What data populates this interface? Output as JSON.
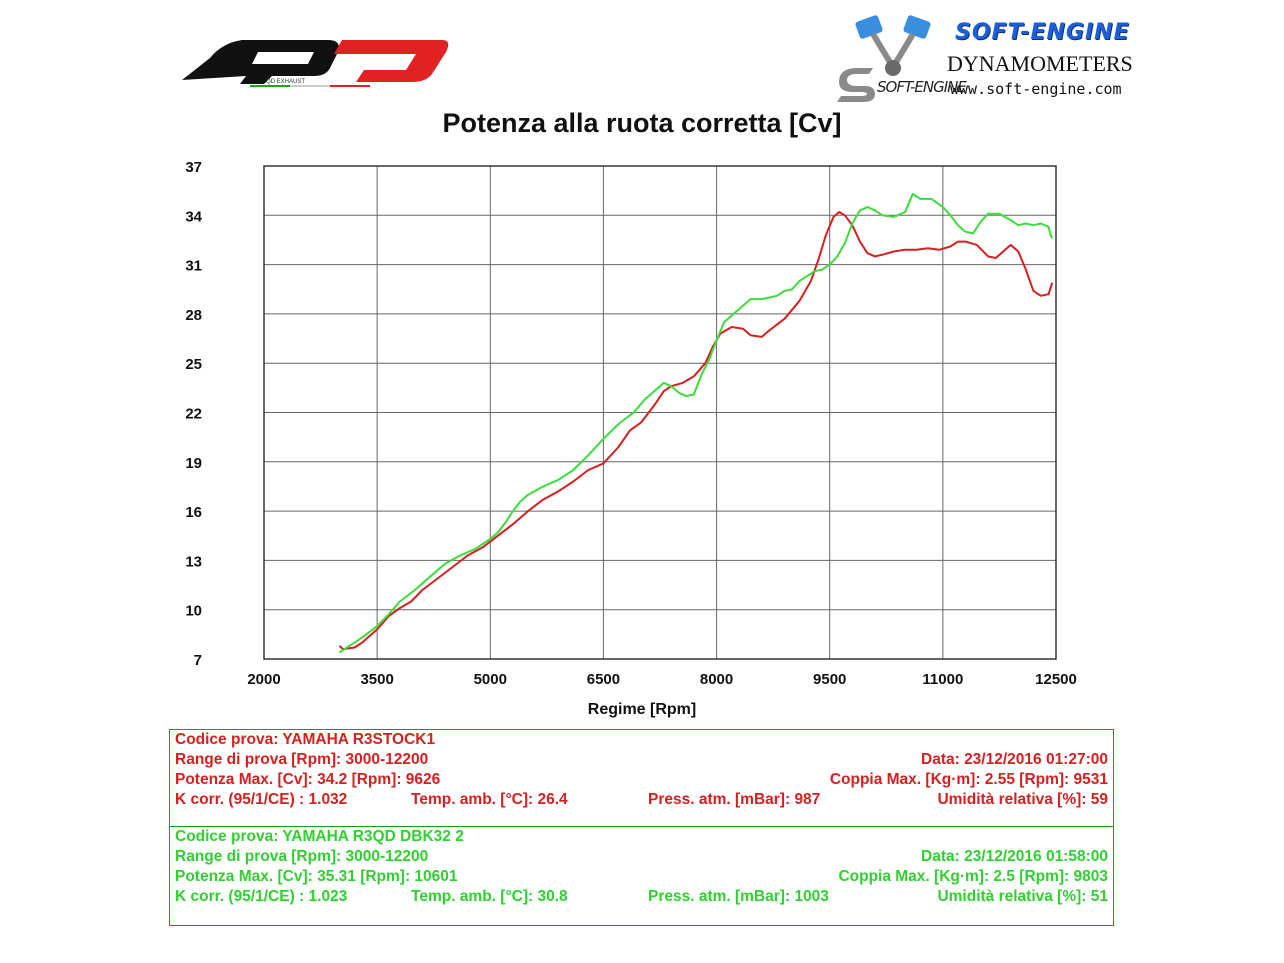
{
  "branding": {
    "left_logo_caption": "QD EXHAUST",
    "right_brand": "SOFT-ENGINE",
    "right_subtitle": "DYNAMOMETERS",
    "right_url": "www.soft-engine.com",
    "right_logo_text": "SOFT-ENGINE"
  },
  "chart_data": {
    "type": "line",
    "title": "Potenza alla ruota corretta [Cv]",
    "xlabel": "Regime [Rpm]",
    "ylabel": "",
    "xlim": [
      2000,
      12500
    ],
    "ylim": [
      7,
      37
    ],
    "xticks": [
      2000,
      3500,
      5000,
      6500,
      8000,
      9500,
      11000,
      12500
    ],
    "yticks": [
      7,
      10,
      13,
      16,
      19,
      22,
      25,
      28,
      31,
      34,
      37
    ],
    "grid": true,
    "series": [
      {
        "color": "#d61f1f",
        "points": [
          [
            3000,
            7.8
          ],
          [
            3050,
            7.6
          ],
          [
            3200,
            7.7
          ],
          [
            3300,
            8.0
          ],
          [
            3500,
            8.8
          ],
          [
            3650,
            9.6
          ],
          [
            3800,
            10.1
          ],
          [
            3950,
            10.5
          ],
          [
            4100,
            11.2
          ],
          [
            4300,
            11.9
          ],
          [
            4500,
            12.6
          ],
          [
            4700,
            13.3
          ],
          [
            4900,
            13.8
          ],
          [
            5100,
            14.5
          ],
          [
            5300,
            15.2
          ],
          [
            5500,
            16.0
          ],
          [
            5700,
            16.7
          ],
          [
            5900,
            17.2
          ],
          [
            6100,
            17.8
          ],
          [
            6300,
            18.5
          ],
          [
            6500,
            18.9
          ],
          [
            6700,
            19.9
          ],
          [
            6850,
            20.9
          ],
          [
            7000,
            21.4
          ],
          [
            7100,
            22.0
          ],
          [
            7200,
            22.6
          ],
          [
            7300,
            23.3
          ],
          [
            7400,
            23.6
          ],
          [
            7550,
            23.8
          ],
          [
            7700,
            24.2
          ],
          [
            7850,
            25.0
          ],
          [
            7950,
            26.0
          ],
          [
            8050,
            26.8
          ],
          [
            8200,
            27.2
          ],
          [
            8350,
            27.1
          ],
          [
            8450,
            26.7
          ],
          [
            8600,
            26.6
          ],
          [
            8700,
            27.0
          ],
          [
            8900,
            27.7
          ],
          [
            9100,
            28.8
          ],
          [
            9250,
            30.0
          ],
          [
            9350,
            31.3
          ],
          [
            9450,
            32.8
          ],
          [
            9550,
            33.9
          ],
          [
            9626,
            34.2
          ],
          [
            9700,
            34.0
          ],
          [
            9800,
            33.4
          ],
          [
            9900,
            32.4
          ],
          [
            10000,
            31.7
          ],
          [
            10100,
            31.5
          ],
          [
            10200,
            31.6
          ],
          [
            10350,
            31.8
          ],
          [
            10500,
            31.9
          ],
          [
            10650,
            31.9
          ],
          [
            10800,
            32.0
          ],
          [
            10950,
            31.9
          ],
          [
            11100,
            32.1
          ],
          [
            11200,
            32.4
          ],
          [
            11300,
            32.4
          ],
          [
            11450,
            32.2
          ],
          [
            11600,
            31.5
          ],
          [
            11700,
            31.4
          ],
          [
            11800,
            31.8
          ],
          [
            11900,
            32.2
          ],
          [
            12000,
            31.8
          ],
          [
            12100,
            30.7
          ],
          [
            12200,
            29.4
          ],
          [
            12300,
            29.1
          ],
          [
            12400,
            29.2
          ],
          [
            12450,
            29.9
          ]
        ]
      },
      {
        "color": "#3ddc3d",
        "points": [
          [
            3000,
            7.4
          ],
          [
            3100,
            7.7
          ],
          [
            3300,
            8.3
          ],
          [
            3500,
            9.0
          ],
          [
            3650,
            9.7
          ],
          [
            3800,
            10.5
          ],
          [
            4000,
            11.2
          ],
          [
            4200,
            12.0
          ],
          [
            4400,
            12.8
          ],
          [
            4600,
            13.3
          ],
          [
            4800,
            13.7
          ],
          [
            5000,
            14.3
          ],
          [
            5100,
            14.7
          ],
          [
            5200,
            15.3
          ],
          [
            5300,
            16.0
          ],
          [
            5400,
            16.6
          ],
          [
            5500,
            17.0
          ],
          [
            5700,
            17.5
          ],
          [
            5900,
            17.9
          ],
          [
            6100,
            18.5
          ],
          [
            6300,
            19.4
          ],
          [
            6500,
            20.4
          ],
          [
            6700,
            21.3
          ],
          [
            6900,
            22.0
          ],
          [
            7050,
            22.8
          ],
          [
            7200,
            23.4
          ],
          [
            7300,
            23.8
          ],
          [
            7400,
            23.6
          ],
          [
            7500,
            23.2
          ],
          [
            7600,
            23.0
          ],
          [
            7700,
            23.1
          ],
          [
            7800,
            24.3
          ],
          [
            7900,
            25.2
          ],
          [
            8000,
            26.4
          ],
          [
            8100,
            27.5
          ],
          [
            8200,
            27.9
          ],
          [
            8300,
            28.3
          ],
          [
            8450,
            28.9
          ],
          [
            8600,
            28.9
          ],
          [
            8700,
            29.0
          ],
          [
            8800,
            29.1
          ],
          [
            8900,
            29.4
          ],
          [
            9000,
            29.5
          ],
          [
            9100,
            30.0
          ],
          [
            9200,
            30.3
          ],
          [
            9300,
            30.6
          ],
          [
            9400,
            30.7
          ],
          [
            9500,
            31.0
          ],
          [
            9600,
            31.5
          ],
          [
            9700,
            32.3
          ],
          [
            9800,
            33.5
          ],
          [
            9900,
            34.3
          ],
          [
            10000,
            34.5
          ],
          [
            10100,
            34.3
          ],
          [
            10200,
            34.0
          ],
          [
            10350,
            33.9
          ],
          [
            10500,
            34.2
          ],
          [
            10601,
            35.31
          ],
          [
            10700,
            35.0
          ],
          [
            10850,
            35.0
          ],
          [
            11000,
            34.5
          ],
          [
            11100,
            34.0
          ],
          [
            11200,
            33.4
          ],
          [
            11300,
            33.0
          ],
          [
            11400,
            32.9
          ],
          [
            11500,
            33.6
          ],
          [
            11600,
            34.1
          ],
          [
            11750,
            34.1
          ],
          [
            11900,
            33.7
          ],
          [
            12000,
            33.4
          ],
          [
            12100,
            33.5
          ],
          [
            12200,
            33.4
          ],
          [
            12300,
            33.5
          ],
          [
            12400,
            33.3
          ],
          [
            12430,
            32.8
          ],
          [
            12450,
            32.6
          ]
        ]
      }
    ]
  },
  "tests": {
    "red": {
      "codice": "Codice prova: YAMAHA R3STOCK1",
      "range": "Range di prova [Rpm]: 3000-12200",
      "data": "Data: 23/12/2016   01:27:00",
      "potenza": "Potenza Max. [Cv]: 34.2   [Rpm]: 9626",
      "coppia": "Coppia Max. [Kg·m]: 2.55   [Rpm]: 9531",
      "kcorr": "K corr. (95/1/CE) : 1.032",
      "temp": "Temp. amb. [°C]: 26.4",
      "press": "Press. atm. [mBar]: 987",
      "umid": "Umidità relativa [%]: 59"
    },
    "green": {
      "codice": "Codice prova: YAMAHA R3QD DBK32 2",
      "range": "Range di prova [Rpm]: 3000-12200",
      "data": "Data: 23/12/2016   01:58:00",
      "potenza": "Potenza Max. [Cv]: 35.31   [Rpm]: 10601",
      "coppia": "Coppia Max. [Kg·m]: 2.5   [Rpm]: 9803",
      "kcorr": "K corr. (95/1/CE) : 1.023",
      "temp": "Temp. amb. [°C]: 30.8",
      "press": "Press. atm. [mBar]: 1003",
      "umid": "Umidità relativa [%]: 51"
    }
  }
}
